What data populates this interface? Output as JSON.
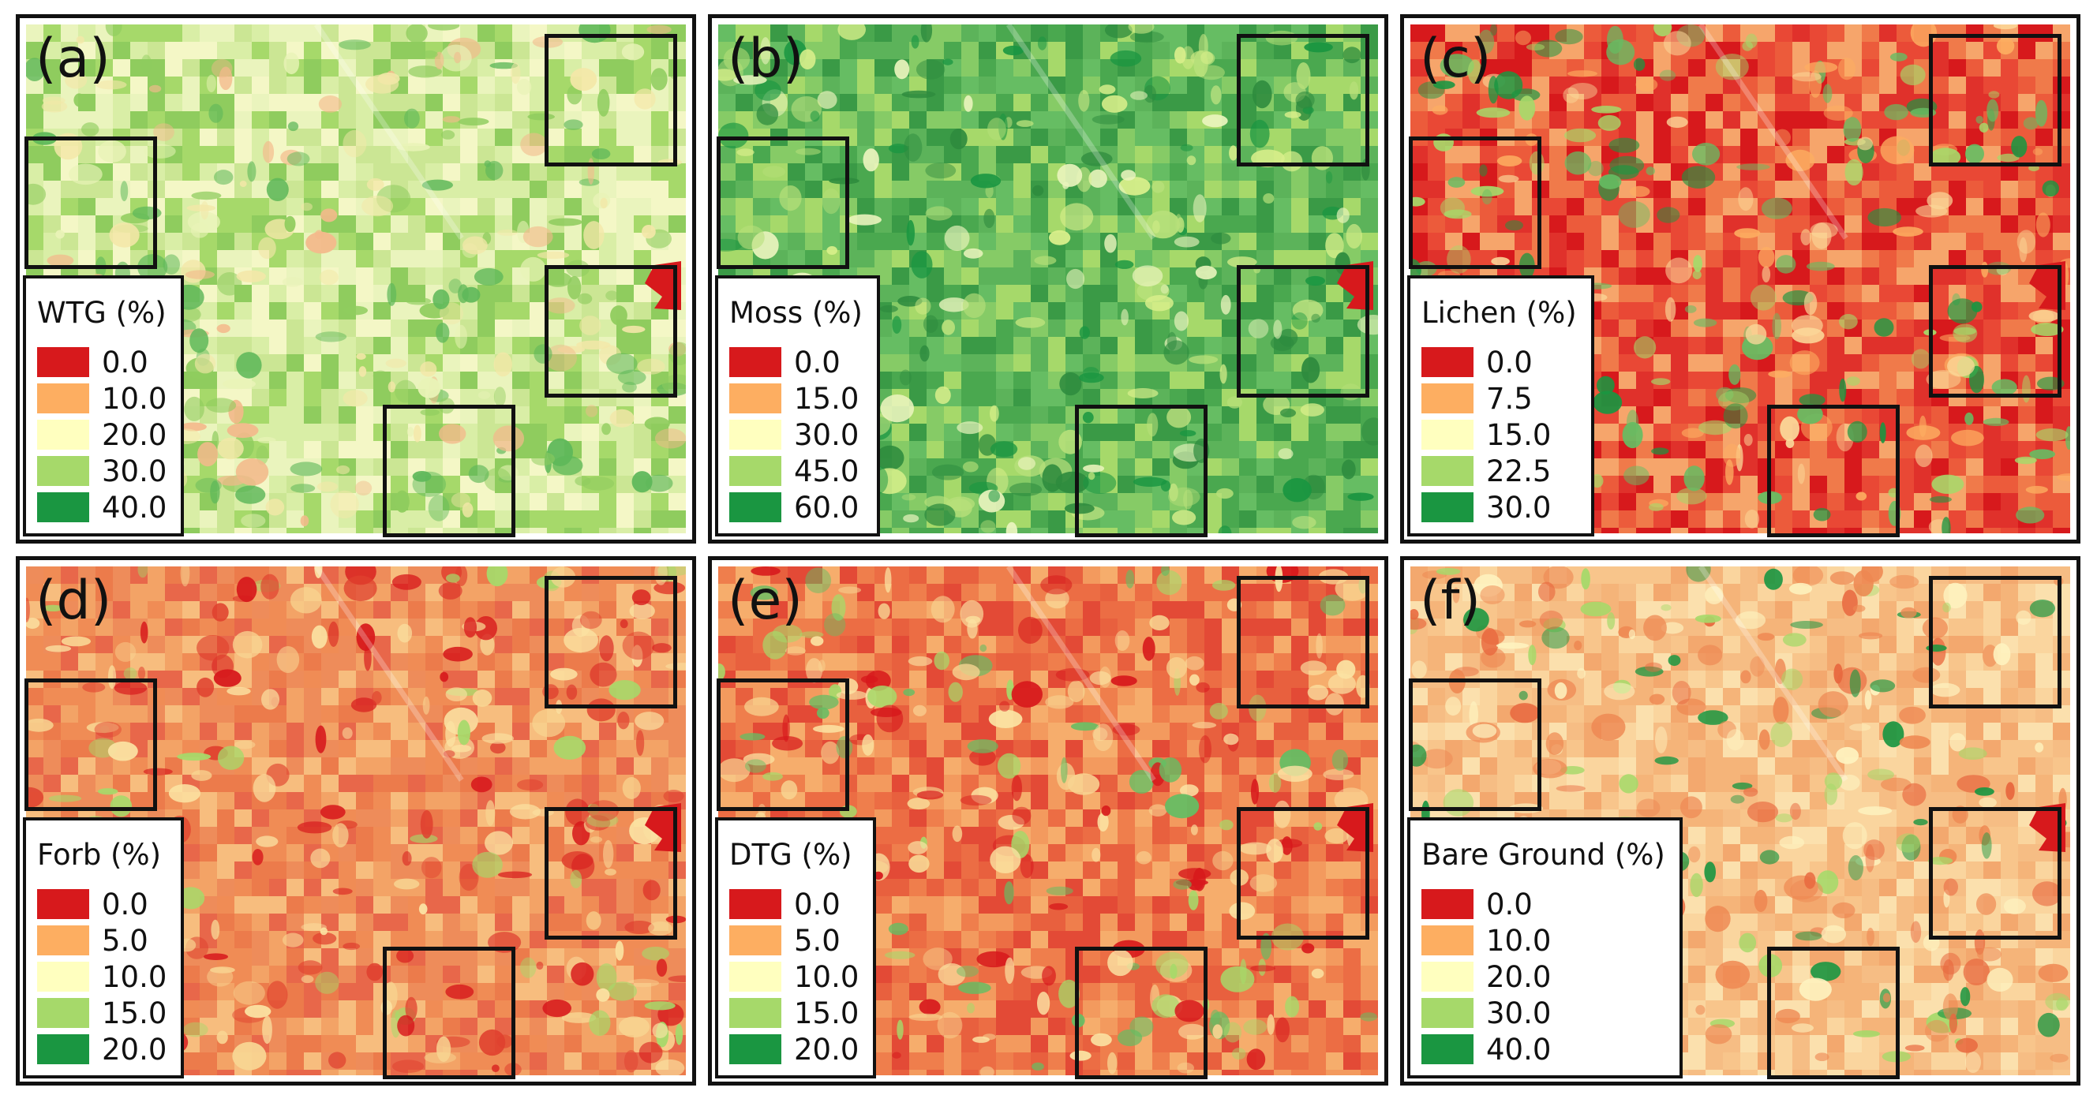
{
  "colors": {
    "class_colors": [
      "#d7191c",
      "#fdae61",
      "#ffffbf",
      "#a6d96a",
      "#1a9641"
    ],
    "background": "#ffffff",
    "frame": "#111111"
  },
  "panels": [
    {
      "label": "(a)",
      "legend_title": "WTG (%)",
      "legend_values": [
        "0.0",
        "10.0",
        "20.0",
        "30.0",
        "40.0"
      ],
      "dominant": "light green",
      "base_palette": [
        "#cbe694",
        "#a6d96a",
        "#d9eea6",
        "#8fcc5e",
        "#eaf4bd",
        "#f4f7c6"
      ],
      "patch_palette": [
        "#5fb85a",
        "#8fcc5e",
        "#f3e7a8",
        "#f3b98b",
        "#e9f3b7"
      ]
    },
    {
      "label": "(b)",
      "legend_title": "Moss (%)",
      "legend_values": [
        "0.0",
        "15.0",
        "30.0",
        "45.0",
        "60.0"
      ],
      "dominant": "green",
      "base_palette": [
        "#66bd63",
        "#4aa84f",
        "#86cb66",
        "#3a9a46",
        "#a6d96a",
        "#5cb35a"
      ],
      "patch_palette": [
        "#1a9641",
        "#d9ef8b",
        "#2e8b3e",
        "#b7e07a",
        "#eaf4bd"
      ]
    },
    {
      "label": "(c)",
      "legend_title": "Lichen (%)",
      "legend_values": [
        "0.0",
        "7.5",
        "15.0",
        "22.5",
        "30.0"
      ],
      "dominant": "red-orange",
      "base_palette": [
        "#e0312b",
        "#ec5b3b",
        "#d7191c",
        "#f07a4a",
        "#f6a56b",
        "#e94835"
      ],
      "patch_palette": [
        "#a6d96a",
        "#1a9641",
        "#fdae61",
        "#fbd99a",
        "#66bd63"
      ]
    },
    {
      "label": "(d)",
      "legend_title": "Forb (%)",
      "legend_values": [
        "0.0",
        "5.0",
        "10.0",
        "15.0",
        "20.0"
      ],
      "dominant": "orange-red",
      "base_palette": [
        "#f08c55",
        "#ec7b4b",
        "#f3a366",
        "#e8674a",
        "#f7bd7e",
        "#ee8c5a"
      ],
      "patch_palette": [
        "#d7191c",
        "#fbe3a3",
        "#a6d96a",
        "#e0402e",
        "#f8d592"
      ]
    },
    {
      "label": "(e)",
      "legend_title": "DTG (%)",
      "legend_values": [
        "0.0",
        "5.0",
        "10.0",
        "15.0",
        "20.0"
      ],
      "dominant": "red-orange",
      "base_palette": [
        "#e8603e",
        "#ef7e4c",
        "#e34a36",
        "#f39a5e",
        "#f6ad6c",
        "#ec6d44"
      ],
      "patch_palette": [
        "#a6d96a",
        "#d7191c",
        "#fbe3a3",
        "#66bd63",
        "#f8d592"
      ]
    },
    {
      "label": "(f)",
      "legend_title": "Bare Ground (%)",
      "legend_values": [
        "0.0",
        "10.0",
        "20.0",
        "30.0",
        "40.0"
      ],
      "dominant": "light orange",
      "base_palette": [
        "#f8c58b",
        "#f5b479",
        "#fad59e",
        "#f3a86e",
        "#fbe0ad",
        "#f6bd84"
      ],
      "patch_palette": [
        "#e8683f",
        "#a6d96a",
        "#1a9641",
        "#fef3c0",
        "#ee8852"
      ]
    }
  ]
}
